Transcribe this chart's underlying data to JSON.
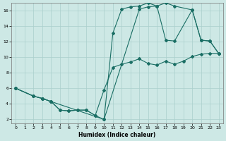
{
  "xlabel": "Humidex (Indice chaleur)",
  "xlim": [
    -0.5,
    23.5
  ],
  "ylim": [
    1.5,
    17.0
  ],
  "yticks": [
    2,
    4,
    6,
    8,
    10,
    12,
    14,
    16
  ],
  "xticks": [
    0,
    1,
    2,
    3,
    4,
    5,
    6,
    7,
    8,
    9,
    10,
    11,
    12,
    13,
    14,
    15,
    16,
    17,
    18,
    19,
    20,
    21,
    22,
    23
  ],
  "bg_color": "#cde8e5",
  "grid_color": "#aacfcc",
  "line_color": "#1a6e64",
  "line1_x": [
    0,
    2,
    3,
    4,
    5,
    6,
    7,
    8,
    9,
    10,
    14,
    15,
    16,
    17,
    18,
    20,
    21,
    22,
    23
  ],
  "line1_y": [
    6,
    5,
    4.7,
    4.3,
    3.2,
    3.1,
    3.2,
    3.2,
    2.5,
    2.0,
    16.2,
    16.5,
    16.6,
    17.0,
    16.6,
    16.1,
    12.2,
    12.1,
    10.5
  ],
  "line2_x": [
    0,
    2,
    3,
    4,
    5,
    6,
    7,
    8,
    9,
    10,
    11,
    12,
    13,
    14,
    15,
    16,
    17,
    18,
    19,
    20,
    21,
    22,
    23
  ],
  "line2_y": [
    6,
    5,
    4.7,
    4.3,
    3.2,
    3.1,
    3.2,
    3.2,
    2.5,
    5.8,
    8.7,
    9.1,
    9.4,
    9.8,
    9.2,
    9.0,
    9.5,
    9.1,
    9.5,
    10.1,
    10.4,
    10.5,
    10.5
  ],
  "line3_x": [
    0,
    2,
    3,
    4,
    10,
    11,
    12,
    13,
    14,
    15,
    16,
    17,
    18,
    20,
    21,
    22,
    23
  ],
  "line3_y": [
    6,
    5,
    4.7,
    4.3,
    2.0,
    13.1,
    16.2,
    16.5,
    16.6,
    17.0,
    16.6,
    12.2,
    12.1,
    16.1,
    12.2,
    12.1,
    10.5
  ]
}
